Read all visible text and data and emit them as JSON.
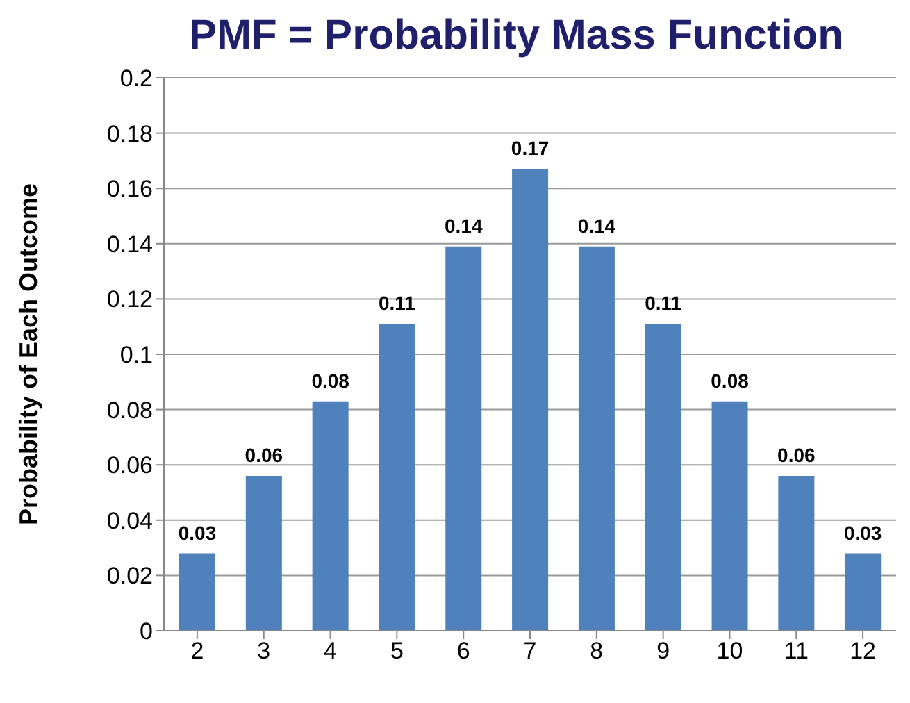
{
  "chart_data": {
    "type": "bar",
    "title": "PMF = Probability Mass Function",
    "ylabel": "Probability of Each Outcome",
    "categories": [
      "2",
      "3",
      "4",
      "5",
      "6",
      "7",
      "8",
      "9",
      "10",
      "11",
      "12"
    ],
    "values": [
      0.028,
      0.056,
      0.083,
      0.111,
      0.139,
      0.167,
      0.139,
      0.111,
      0.083,
      0.056,
      0.028
    ],
    "value_labels": [
      "0.03",
      "0.06",
      "0.08",
      "0.11",
      "0.14",
      "0.17",
      "0.14",
      "0.11",
      "0.08",
      "0.06",
      "0.03"
    ],
    "color": "#4f81bd",
    "ylim": [
      0,
      0.2
    ],
    "yticks": [
      0,
      0.02,
      0.04,
      0.06,
      0.08,
      0.1,
      0.12,
      0.14,
      0.16,
      0.18,
      0.2
    ],
    "grid": "y"
  }
}
